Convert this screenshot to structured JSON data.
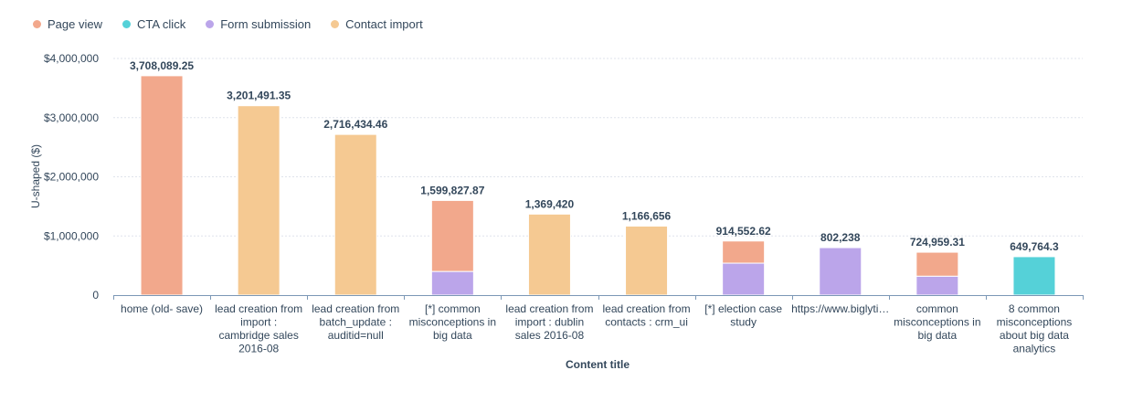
{
  "colors": {
    "page_view": "#f2a88c",
    "cta_click": "#55d1d8",
    "form_submission": "#bba5ea",
    "contact_import": "#f5c992",
    "grid": "#dfe3eb",
    "axis": "#7c98b6"
  },
  "legend": [
    {
      "label": "Page view",
      "color": "#f2a88c"
    },
    {
      "label": "CTA click",
      "color": "#55d1d8"
    },
    {
      "label": "Form submission",
      "color": "#bba5ea"
    },
    {
      "label": "Contact import",
      "color": "#f5c992"
    }
  ],
  "chart_data": {
    "type": "bar",
    "stacked": true,
    "xlabel": "Content title",
    "ylabel": "U-shaped ($)",
    "ylim": [
      0,
      4000000
    ],
    "yticks": [
      0,
      1000000,
      2000000,
      3000000,
      4000000
    ],
    "ytick_labels": [
      "0",
      "$1,000,000",
      "$2,000,000",
      "$3,000,000",
      "$4,000,000"
    ],
    "grid": true,
    "legend_position": "top-left",
    "categories": [
      [
        "home (old- save)"
      ],
      [
        "lead creation from",
        "import :",
        "cambridge sales",
        "2016-08"
      ],
      [
        "lead creation from",
        "batch_update :",
        "auditid=null"
      ],
      [
        "[*] common",
        "misconceptions in",
        "big data"
      ],
      [
        "lead creation from",
        "import : dublin",
        "sales 2016-08"
      ],
      [
        "lead creation from",
        "contacts : crm_ui"
      ],
      [
        "[*] election case",
        "study"
      ],
      [
        "https://www.biglyti…"
      ],
      [
        "common",
        "misconceptions in",
        "big data"
      ],
      [
        "8 common",
        "misconceptions",
        "about big data",
        "analytics"
      ]
    ],
    "totals_labels": [
      "3,708,089.25",
      "3,201,491.35",
      "2,716,434.46",
      "1,599,827.87",
      "1,369,420",
      "1,166,656",
      "914,552.62",
      "802,238",
      "724,959.31",
      "649,764.3"
    ],
    "series": [
      {
        "name": "Form submission",
        "color": "#bba5ea",
        "values": [
          0,
          0,
          0,
          400000,
          0,
          0,
          540000,
          802238,
          320000,
          0
        ]
      },
      {
        "name": "Contact import",
        "color": "#f5c992",
        "values": [
          0,
          3201491.35,
          2716434.46,
          0,
          1369420,
          1166656,
          0,
          0,
          0,
          0
        ]
      },
      {
        "name": "CTA click",
        "color": "#55d1d8",
        "values": [
          0,
          0,
          0,
          0,
          0,
          0,
          0,
          0,
          0,
          649764.3
        ]
      },
      {
        "name": "Page view",
        "color": "#f2a88c",
        "values": [
          3708089.25,
          0,
          0,
          1199827.87,
          0,
          0,
          374552.62,
          0,
          404959.31,
          0
        ]
      }
    ]
  }
}
